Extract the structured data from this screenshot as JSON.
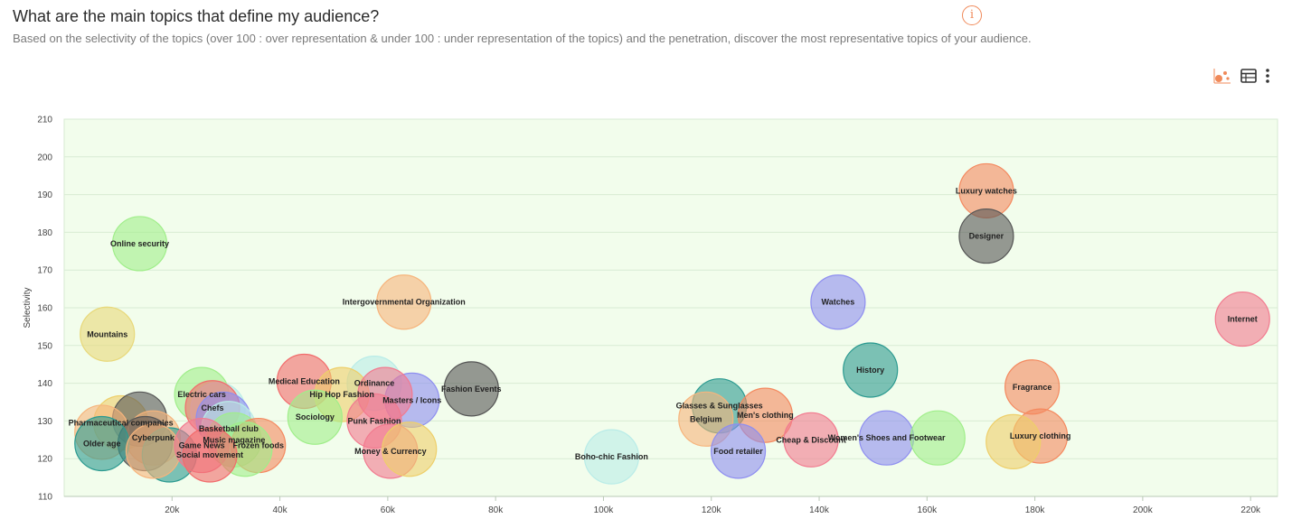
{
  "header": {
    "title": "What are the main topics that define my audience?",
    "subtitle": "Based on the selectivity of the topics (over 100 : over representation & under 100 : under representation of the topics) and the penetration, discover the most representative topics of your audience.",
    "info_glyph": "i"
  },
  "toolbar": {
    "icons": [
      "bubble-chart-icon",
      "table-icon",
      "more-vertical-icon"
    ],
    "active_color": "#f08a5a"
  },
  "chart_data": {
    "type": "scatter",
    "subtype": "bubble",
    "title": "",
    "xlabel": "",
    "ylabel": "Selectivity",
    "xlim": [
      0,
      225000
    ],
    "ylim": [
      110,
      210
    ],
    "x_ticks": [
      20000,
      40000,
      60000,
      80000,
      100000,
      120000,
      140000,
      160000,
      180000,
      200000,
      220000
    ],
    "x_tick_labels": [
      "20k",
      "40k",
      "60k",
      "80k",
      "100k",
      "120k",
      "140k",
      "160k",
      "180k",
      "200k",
      "220k"
    ],
    "y_ticks": [
      110,
      120,
      130,
      140,
      150,
      160,
      170,
      180,
      190,
      200,
      210
    ],
    "grid": true,
    "legend": "none",
    "plot_background": "#f2fdec",
    "points": [
      {
        "label": "Luxury watches",
        "x": 171000,
        "y": 191,
        "color": "#f4895f"
      },
      {
        "label": "Designer",
        "x": 171000,
        "y": 179,
        "color": "#555555"
      },
      {
        "label": "Online security",
        "x": 14000,
        "y": 177,
        "color": "#a0ee8a"
      },
      {
        "label": "Intergovernmental Organization",
        "x": 63000,
        "y": 161.5,
        "color": "#f6b47c"
      },
      {
        "label": "Watches",
        "x": 143500,
        "y": 161.5,
        "color": "#8e8ef0"
      },
      {
        "label": "Internet",
        "x": 218500,
        "y": 157,
        "color": "#f27a8f"
      },
      {
        "label": "Mountains",
        "x": 8000,
        "y": 153,
        "color": "#e8d87a"
      },
      {
        "label": "History",
        "x": 149500,
        "y": 143.5,
        "color": "#2b9a90"
      },
      {
        "label": "Fashion Events",
        "x": 75500,
        "y": 138.5,
        "color": "#555555"
      },
      {
        "label": "Fragrance",
        "x": 179500,
        "y": 139,
        "color": "#f4895f"
      },
      {
        "label": "Medical Education",
        "x": 44500,
        "y": 140.5,
        "color": "#f26b6b"
      },
      {
        "label": "Ordinance",
        "x": 57500,
        "y": 140,
        "color": "#b9ece8"
      },
      {
        "label": "Electric cars",
        "x": 25500,
        "y": 137,
        "color": "#a0ee8a"
      },
      {
        "label": "Hip Hop Fashion",
        "x": 51500,
        "y": 137,
        "color": "#eecf6a"
      },
      {
        "label": "Masters / Icons",
        "x": 64500,
        "y": 135.5,
        "color": "#8e8ef0"
      },
      {
        "label": "",
        "x": 59500,
        "y": 137,
        "color": "#f27a8f"
      },
      {
        "label": "",
        "x": 28500,
        "y": 133,
        "color": "#b9ece8"
      },
      {
        "label": "Chefs",
        "x": 27500,
        "y": 133.5,
        "color": "#f26b6b"
      },
      {
        "label": "",
        "x": 29500,
        "y": 130.5,
        "color": "#8e8ef0"
      },
      {
        "label": "Glasses & Sunglasses",
        "x": 121500,
        "y": 134,
        "color": "#2b9a90"
      },
      {
        "label": "Belgium",
        "x": 119000,
        "y": 130.5,
        "color": "#f6b47c"
      },
      {
        "label": "Men's clothing",
        "x": 130000,
        "y": 131.5,
        "color": "#f4895f"
      },
      {
        "label": "Sociology",
        "x": 46500,
        "y": 131,
        "color": "#a0ee8a"
      },
      {
        "label": "Punk Fashion",
        "x": 57500,
        "y": 130,
        "color": "#f27a8f"
      },
      {
        "label": "Pharmaceutical companies",
        "x": 10500,
        "y": 129.5,
        "color": "#eecf6a"
      },
      {
        "label": "",
        "x": 14000,
        "y": 130.5,
        "color": "#555555"
      },
      {
        "label": "",
        "x": 7000,
        "y": 127,
        "color": "#f6b47c"
      },
      {
        "label": "Basketball club",
        "x": 30500,
        "y": 128,
        "color": "#b9ece8"
      },
      {
        "label": "Music magazine",
        "x": 31500,
        "y": 125,
        "color": "#a0ee8a"
      },
      {
        "label": "Cheap & Discount",
        "x": 138500,
        "y": 125,
        "color": "#f27a8f"
      },
      {
        "label": "Cyberpunk",
        "x": 16500,
        "y": 125.5,
        "color": "#f6b47c"
      },
      {
        "label": "",
        "x": 15000,
        "y": 124,
        "color": "#555555"
      },
      {
        "label": "Women's Shoes and Footwear",
        "x": 152500,
        "y": 125.5,
        "color": "#8e8ef0"
      },
      {
        "label": "Luxury clothing",
        "x": 181000,
        "y": 126,
        "color": "#f4895f"
      },
      {
        "label": "",
        "x": 176000,
        "y": 124.5,
        "color": "#eecf6a"
      },
      {
        "label": "",
        "x": 162000,
        "y": 125.5,
        "color": "#a0ee8a"
      },
      {
        "label": "Older age",
        "x": 7000,
        "y": 124,
        "color": "#2b9a90"
      },
      {
        "label": "",
        "x": 19500,
        "y": 121,
        "color": "#2b9a90"
      },
      {
        "label": "",
        "x": 16500,
        "y": 122,
        "color": "#f6b47c"
      },
      {
        "label": "Game News",
        "x": 25500,
        "y": 123.5,
        "color": "#f27a8f"
      },
      {
        "label": "Frozen foods",
        "x": 36000,
        "y": 123.5,
        "color": "#f4895f"
      },
      {
        "label": "",
        "x": 33500,
        "y": 122.5,
        "color": "#a0ee8a"
      },
      {
        "label": "Social movement",
        "x": 27000,
        "y": 121,
        "color": "#f26b6b"
      },
      {
        "label": "Money & Currency",
        "x": 60500,
        "y": 122,
        "color": "#f27a8f"
      },
      {
        "label": "",
        "x": 64000,
        "y": 122.5,
        "color": "#eecf6a"
      },
      {
        "label": "Food retailer",
        "x": 125000,
        "y": 122,
        "color": "#8e8ef0"
      },
      {
        "label": "Boho-chic Fashion",
        "x": 101500,
        "y": 120.5,
        "color": "#b9ece8"
      }
    ]
  }
}
